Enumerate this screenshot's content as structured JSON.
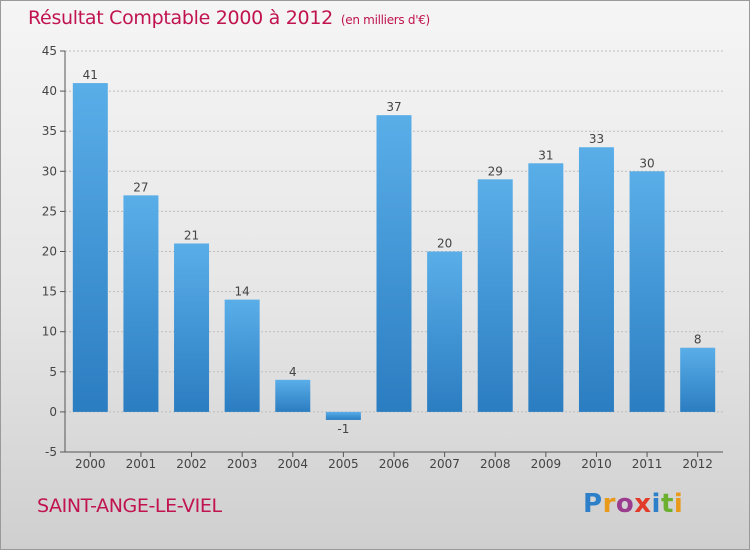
{
  "title": "Résultat Comptable 2000 à 2012",
  "subtitle": "(en milliers d'€)",
  "commune": "SAINT-ANGE-LE-VIEL",
  "logo": {
    "text": "Proxiti",
    "letters": [
      {
        "ch": "P",
        "color": "#2e7fc9"
      },
      {
        "ch": "r",
        "color": "#e99a1b"
      },
      {
        "ch": "o",
        "color": "#9b3c8f"
      },
      {
        "ch": "x",
        "color": "#e23b2a"
      },
      {
        "ch": "i",
        "color": "#2e7fc9"
      },
      {
        "ch": "t",
        "color": "#6bb02e"
      },
      {
        "ch": "i",
        "color": "#e99a1b"
      }
    ]
  },
  "colors": {
    "title": "#c0134f",
    "bar_light": "#5aaee8",
    "bar_dark": "#2b7dc1",
    "grid": "#bdbdbd",
    "axis": "#555555"
  },
  "chart_data": {
    "type": "bar",
    "title": "Résultat Comptable 2000 à 2012",
    "subtitle": "(en milliers d'€)",
    "categories": [
      "2000",
      "2001",
      "2002",
      "2003",
      "2004",
      "2005",
      "2006",
      "2007",
      "2008",
      "2009",
      "2010",
      "2011",
      "2012"
    ],
    "values": [
      41,
      27,
      21,
      14,
      4,
      -1,
      37,
      20,
      29,
      31,
      33,
      30,
      8
    ],
    "ylim": [
      -5,
      45
    ],
    "yticks": [
      -5,
      0,
      5,
      10,
      15,
      20,
      25,
      30,
      35,
      40,
      45
    ],
    "grid": true
  }
}
